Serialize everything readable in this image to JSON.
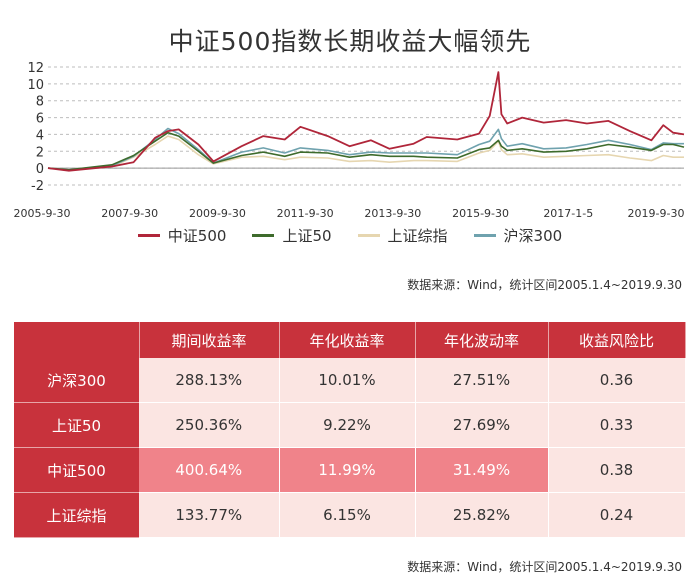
{
  "chart_data": {
    "type": "line",
    "title": "中证500指数长期收益大幅领先",
    "x_ticks": [
      "2005-9-30",
      "2007-9-30",
      "2009-9-30",
      "2011-9-30",
      "2013-9-30",
      "2015-9-30",
      "2017-1-5",
      "2019-9-30"
    ],
    "y_ticks": [
      -2,
      0,
      2,
      4,
      6,
      8,
      10,
      12
    ],
    "ylim": [
      -2,
      12
    ],
    "grid": "horizontal dashed",
    "legend_position": "bottom",
    "x": [
      "2005-01-04",
      "2005-06-30",
      "2006-06-30",
      "2006-12-29",
      "2007-06-29",
      "2007-10-16",
      "2008-01-15",
      "2008-06-30",
      "2008-11-04",
      "2009-06-30",
      "2009-12-31",
      "2010-06-30",
      "2010-11-10",
      "2011-06-30",
      "2011-12-30",
      "2012-06-29",
      "2012-12-03",
      "2013-06-25",
      "2013-10-14",
      "2014-06-30",
      "2014-12-31",
      "2015-03-31",
      "2015-06-12",
      "2015-07-08",
      "2015-08-26",
      "2015-12-31",
      "2016-06-30",
      "2017-01-05",
      "2017-06-30",
      "2017-12-29",
      "2018-06-29",
      "2018-12-28",
      "2019-04-08",
      "2019-06-30",
      "2019-09-30"
    ],
    "series": [
      {
        "name": "中证500",
        "color": "#b0263a",
        "values": [
          0,
          -0.3,
          0.2,
          0.7,
          3.6,
          4.4,
          4.6,
          2.8,
          0.8,
          2.6,
          3.8,
          3.4,
          4.9,
          3.8,
          2.6,
          3.3,
          2.3,
          2.9,
          3.7,
          3.4,
          4.1,
          6.2,
          11.4,
          6.4,
          5.3,
          6.0,
          5.4,
          5.7,
          5.3,
          5.6,
          4.4,
          3.3,
          5.1,
          4.2,
          4.0
        ]
      },
      {
        "name": "上证50",
        "color": "#3e6b2c",
        "values": [
          0,
          -0.2,
          0.4,
          1.5,
          3.2,
          4.2,
          3.8,
          2.0,
          0.6,
          1.5,
          1.9,
          1.4,
          1.9,
          1.8,
          1.3,
          1.6,
          1.4,
          1.4,
          1.3,
          1.2,
          2.2,
          2.4,
          3.3,
          2.6,
          2.1,
          2.3,
          1.9,
          2.0,
          2.3,
          2.8,
          2.5,
          2.1,
          2.8,
          2.8,
          2.5
        ]
      },
      {
        "name": "上证综指",
        "color": "#e6d6b0",
        "values": [
          0,
          -0.2,
          0.2,
          1.3,
          2.8,
          3.8,
          3.4,
          1.6,
          0.5,
          1.3,
          1.4,
          1.0,
          1.3,
          1.2,
          0.8,
          0.9,
          0.7,
          0.9,
          0.9,
          0.8,
          1.8,
          2.1,
          3.2,
          2.2,
          1.6,
          1.7,
          1.3,
          1.4,
          1.5,
          1.6,
          1.2,
          0.9,
          1.5,
          1.3,
          1.3
        ]
      },
      {
        "name": "沪深300",
        "color": "#6fa2ae",
        "values": [
          0,
          -0.2,
          0.3,
          1.4,
          3.4,
          4.7,
          4.1,
          2.2,
          0.6,
          1.9,
          2.4,
          1.8,
          2.4,
          2.1,
          1.6,
          1.9,
          1.8,
          1.8,
          1.8,
          1.6,
          2.8,
          3.2,
          4.6,
          3.5,
          2.6,
          2.9,
          2.3,
          2.4,
          2.8,
          3.3,
          2.8,
          2.2,
          3.0,
          2.9,
          2.9
        ]
      }
    ]
  },
  "source_note": "数据来源：Wind，统计区间2005.1.4~2019.9.30",
  "table": {
    "headers": [
      "期间收益率",
      "年化收益率",
      "年化波动率",
      "收益风险比"
    ],
    "rows": [
      {
        "name": "沪深300",
        "values": [
          "288.13%",
          "10.01%",
          "27.51%",
          "0.36"
        ]
      },
      {
        "name": "上证50",
        "values": [
          "250.36%",
          "9.22%",
          "27.69%",
          "0.33"
        ]
      },
      {
        "name": "中证500",
        "values": [
          "400.64%",
          "11.99%",
          "31.49%",
          "0.38"
        ]
      },
      {
        "name": "上证综指",
        "values": [
          "133.77%",
          "6.15%",
          "25.82%",
          "0.24"
        ]
      }
    ]
  }
}
